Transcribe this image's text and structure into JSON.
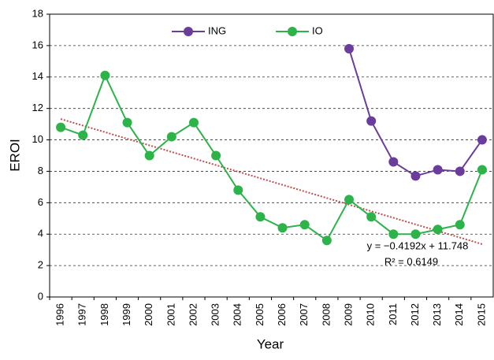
{
  "chart_data": {
    "type": "line",
    "x_label": "Year",
    "y_label": "EROI",
    "categories": [
      "1996",
      "1997",
      "1998",
      "1999",
      "2000",
      "2001",
      "2002",
      "2003",
      "2004",
      "2005",
      "2006",
      "2007",
      "2008",
      "2009",
      "2010",
      "2011",
      "2012",
      "2013",
      "2014",
      "2015"
    ],
    "series": [
      {
        "name": "ING",
        "color": "#6a3d9a",
        "values": [
          null,
          null,
          null,
          null,
          null,
          null,
          null,
          null,
          null,
          null,
          null,
          null,
          null,
          15.8,
          11.2,
          8.6,
          7.7,
          8.1,
          8.0,
          10.0
        ]
      },
      {
        "name": "IO",
        "color": "#2db34a",
        "values": [
          10.8,
          10.3,
          14.1,
          11.1,
          9.0,
          10.2,
          11.1,
          9.0,
          6.8,
          5.1,
          4.4,
          4.6,
          3.6,
          6.2,
          5.1,
          4.0,
          4.0,
          4.3,
          4.6,
          8.1
        ]
      }
    ],
    "trendline": {
      "equation": "y = −0.4192x + 11.748",
      "r2": "R² = 0.6149",
      "slope": -0.4192,
      "intercept": 11.748,
      "color": "#c0504d"
    },
    "ylim": [
      0,
      18
    ],
    "yticks": [
      0,
      2,
      4,
      6,
      8,
      10,
      12,
      14,
      16,
      18
    ],
    "grid": true,
    "legend": "top"
  }
}
